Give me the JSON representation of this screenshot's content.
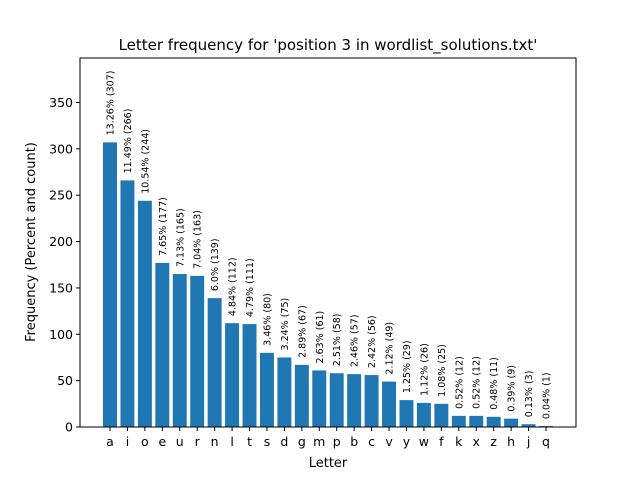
{
  "chart_data": {
    "type": "bar",
    "title": "Letter frequency for 'position 3 in wordlist_solutions.txt'",
    "xlabel": "Letter",
    "ylabel": "Frequency (Percent and count)",
    "ylim": [
      0,
      398
    ],
    "yticks": [
      0,
      50,
      100,
      150,
      200,
      250,
      300,
      350
    ],
    "bar_color": "#1f77b4",
    "grid": false,
    "categories": [
      "a",
      "i",
      "o",
      "e",
      "u",
      "r",
      "n",
      "l",
      "t",
      "s",
      "d",
      "g",
      "m",
      "p",
      "b",
      "c",
      "v",
      "y",
      "w",
      "f",
      "k",
      "x",
      "z",
      "h",
      "j",
      "q"
    ],
    "values": [
      307,
      266,
      244,
      177,
      165,
      163,
      139,
      112,
      111,
      80,
      75,
      67,
      61,
      58,
      57,
      56,
      49,
      29,
      26,
      25,
      12,
      12,
      11,
      9,
      3,
      1
    ],
    "data_labels": [
      "13.26% (307)",
      "11.49% (266)",
      "10.54% (244)",
      "7.65% (177)",
      "7.13% (165)",
      "7.04% (163)",
      "6.0% (139)",
      "4.84% (112)",
      "4.79% (111)",
      "3.46% (80)",
      "3.24% (75)",
      "2.89% (67)",
      "2.63% (61)",
      "2.51% (58)",
      "2.46% (57)",
      "2.42% (56)",
      "2.12% (49)",
      "1.25% (29)",
      "1.12% (26)",
      "1.08% (25)",
      "0.52% (12)",
      "0.52% (12)",
      "0.48% (11)",
      "0.39% (9)",
      "0.13% (3)",
      "0.04% (1)"
    ]
  }
}
